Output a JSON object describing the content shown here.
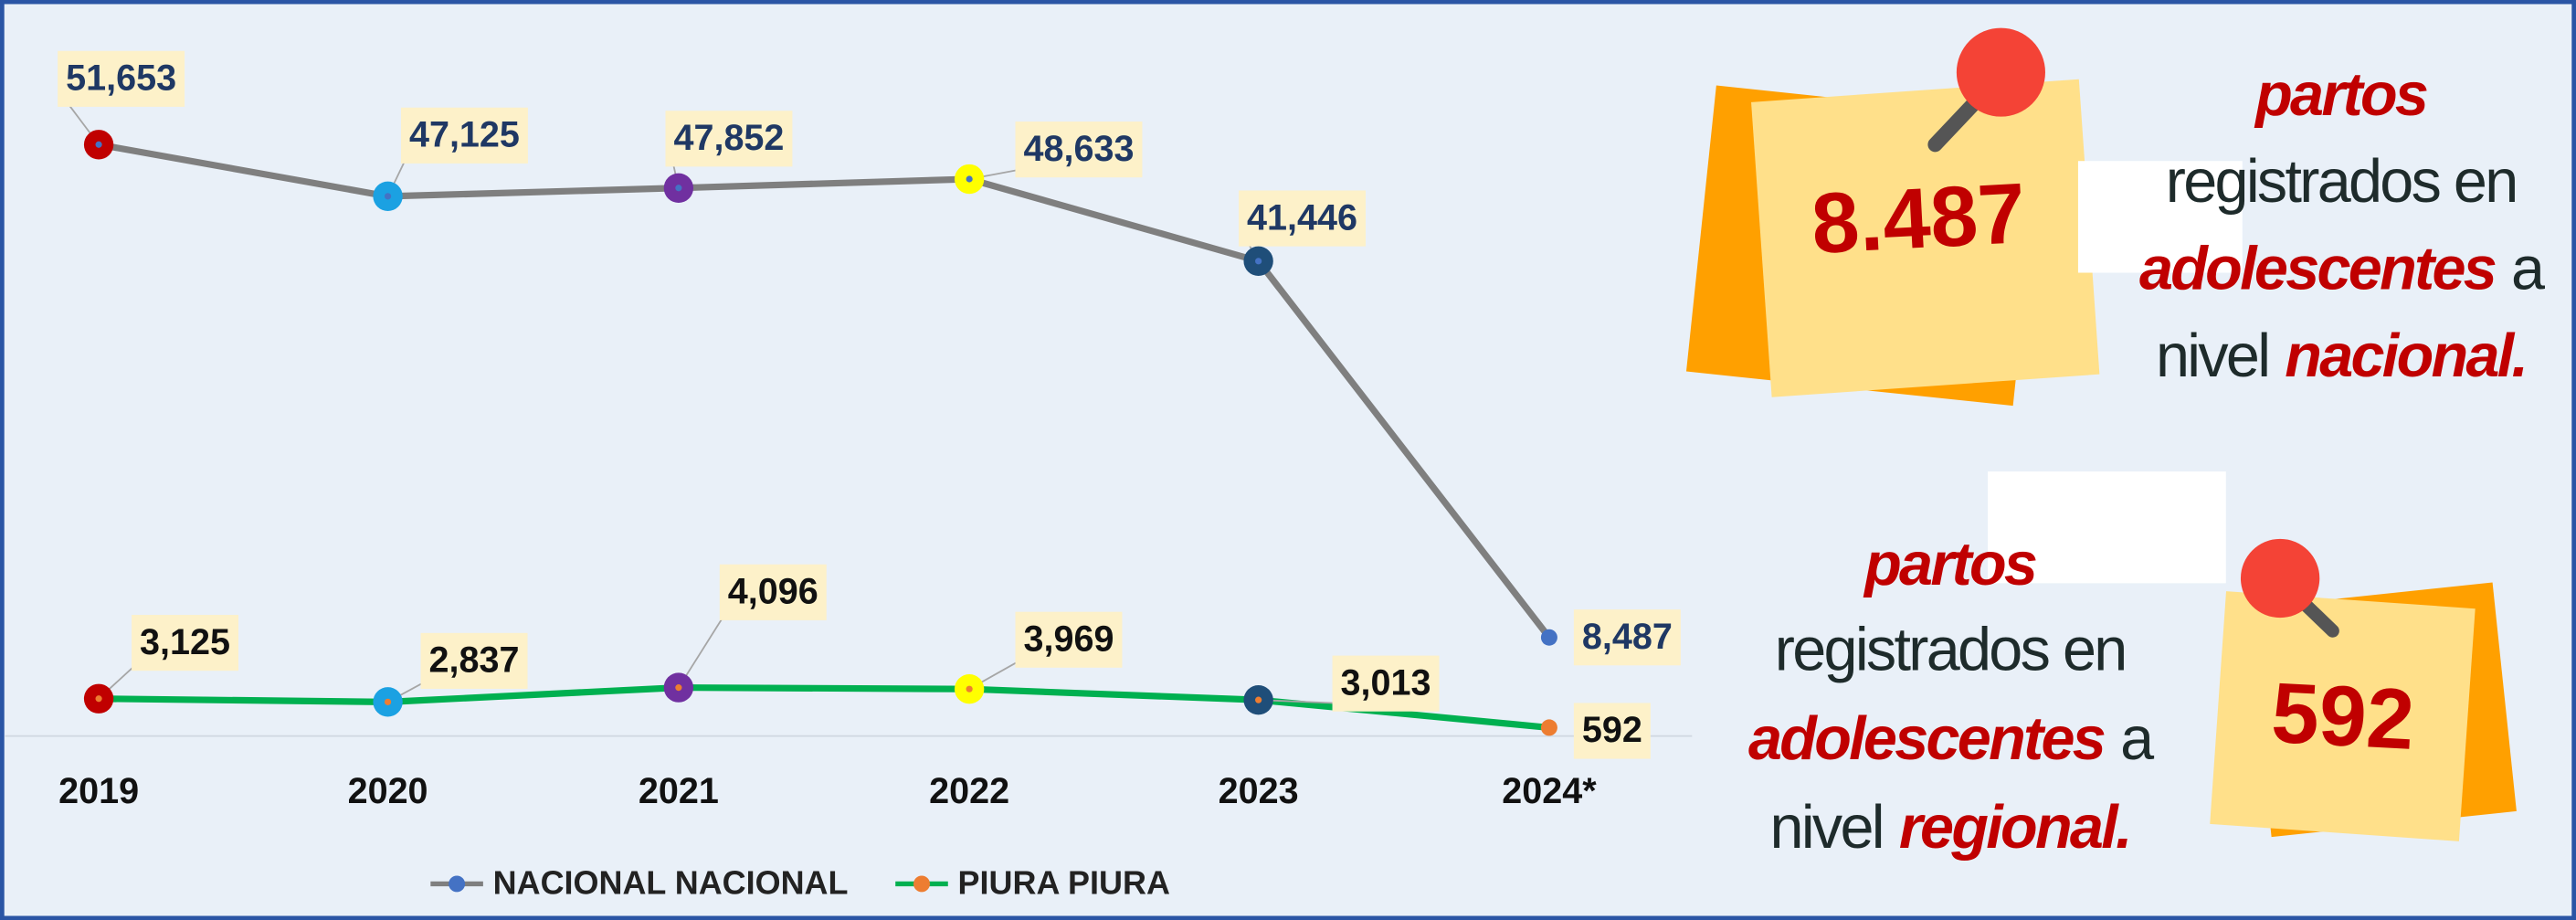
{
  "chart_data": {
    "type": "line",
    "categories": [
      "2019",
      "2020",
      "2021",
      "2022",
      "2023",
      "2024*"
    ],
    "series": [
      {
        "name": "NACIONAL NACIONAL",
        "color": "#7f7f7f",
        "marker_color": "#4472c4",
        "label_color": "#1f3864",
        "values": [
          51653,
          47125,
          47852,
          48633,
          41446,
          8487
        ],
        "value_labels": [
          "51,653",
          "47,125",
          "47,852",
          "48,633",
          "41,446",
          "8,487"
        ]
      },
      {
        "name": "PIURA PIURA",
        "color": "#00b050",
        "marker_color": "#ed7d31",
        "label_color": "#111111",
        "values": [
          3125,
          2837,
          4096,
          3969,
          3013,
          592
        ],
        "value_labels": [
          "3,125",
          "2,837",
          "4,096",
          "3,969",
          "3,013",
          "592"
        ]
      }
    ],
    "point_colors": [
      "#c00000",
      "#1ba1e2",
      "#7030a0",
      "#ffff00",
      "#1f4e79"
    ],
    "ylim": [
      0,
      60000
    ]
  },
  "notes": [
    {
      "number": "8.487",
      "lines": [
        [
          {
            "text": "partos",
            "accent": true
          }
        ],
        [
          {
            "text": "registrados en",
            "accent": false
          }
        ],
        [
          {
            "text": "adolescentes",
            "accent": true
          },
          {
            "text": "a",
            "accent": false
          }
        ],
        [
          {
            "text": "nivel",
            "accent": false
          },
          {
            "text": "nacional.",
            "accent": true
          }
        ]
      ]
    },
    {
      "number": "592",
      "lines": [
        [
          {
            "text": "partos",
            "accent": true
          }
        ],
        [
          {
            "text": "registrados en",
            "accent": false
          }
        ],
        [
          {
            "text": "adolescentes",
            "accent": true
          },
          {
            "text": "a",
            "accent": false
          }
        ],
        [
          {
            "text": "nivel",
            "accent": false
          },
          {
            "text": "regional.",
            "accent": true
          }
        ]
      ]
    }
  ]
}
